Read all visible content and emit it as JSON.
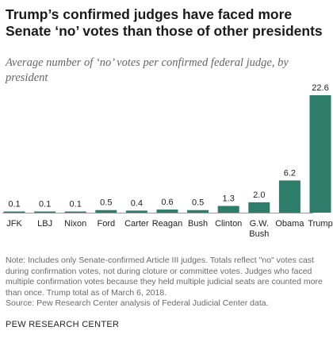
{
  "title": "Trump’s confirmed judges have faced more Senate ‘no’ votes than those of other presidents",
  "subtitle": "Average number of ‘no’ votes per confirmed federal judge, by president",
  "colors": {
    "bar": "#2e7d6b",
    "axis": "#9a9a9a",
    "text": "#222222"
  },
  "chart_data": {
    "type": "bar",
    "categories": [
      "JFK",
      "LBJ",
      "Nixon",
      "Ford",
      "Carter",
      "Reagan",
      "Bush",
      "Clinton",
      "G.W. Bush",
      "Obama",
      "Trump"
    ],
    "category_lines": [
      [
        "JFK"
      ],
      [
        "LBJ"
      ],
      [
        "Nixon"
      ],
      [
        "Ford"
      ],
      [
        "Carter"
      ],
      [
        "Reagan"
      ],
      [
        "Bush"
      ],
      [
        "Clinton"
      ],
      [
        "G.W.",
        "Bush"
      ],
      [
        "Obama"
      ],
      [
        "Trump"
      ]
    ],
    "values": [
      0.1,
      0.1,
      0.1,
      0.5,
      0.4,
      0.6,
      0.5,
      1.3,
      2.0,
      6.2,
      22.6
    ],
    "value_labels": [
      "0.1",
      "0.1",
      "0.1",
      "0.5",
      "0.4",
      "0.6",
      "0.5",
      "1.3",
      "2.0",
      "6.2",
      "22.6"
    ],
    "ylim": [
      0,
      22.6
    ],
    "grid": false
  },
  "note": "Note: Includes only Senate-confirmed Article III judges. Totals reflect \"no\" votes cast during confirmation votes, not during cloture or committee votes. Judges who faced multiple confirmation votes because they held multiple judicial seats are counted more than once. Trump total as of March 6, 2018.",
  "source": "Source: Pew Research Center analysis of Federal Judicial Center data.",
  "brand": "PEW RESEARCH CENTER"
}
